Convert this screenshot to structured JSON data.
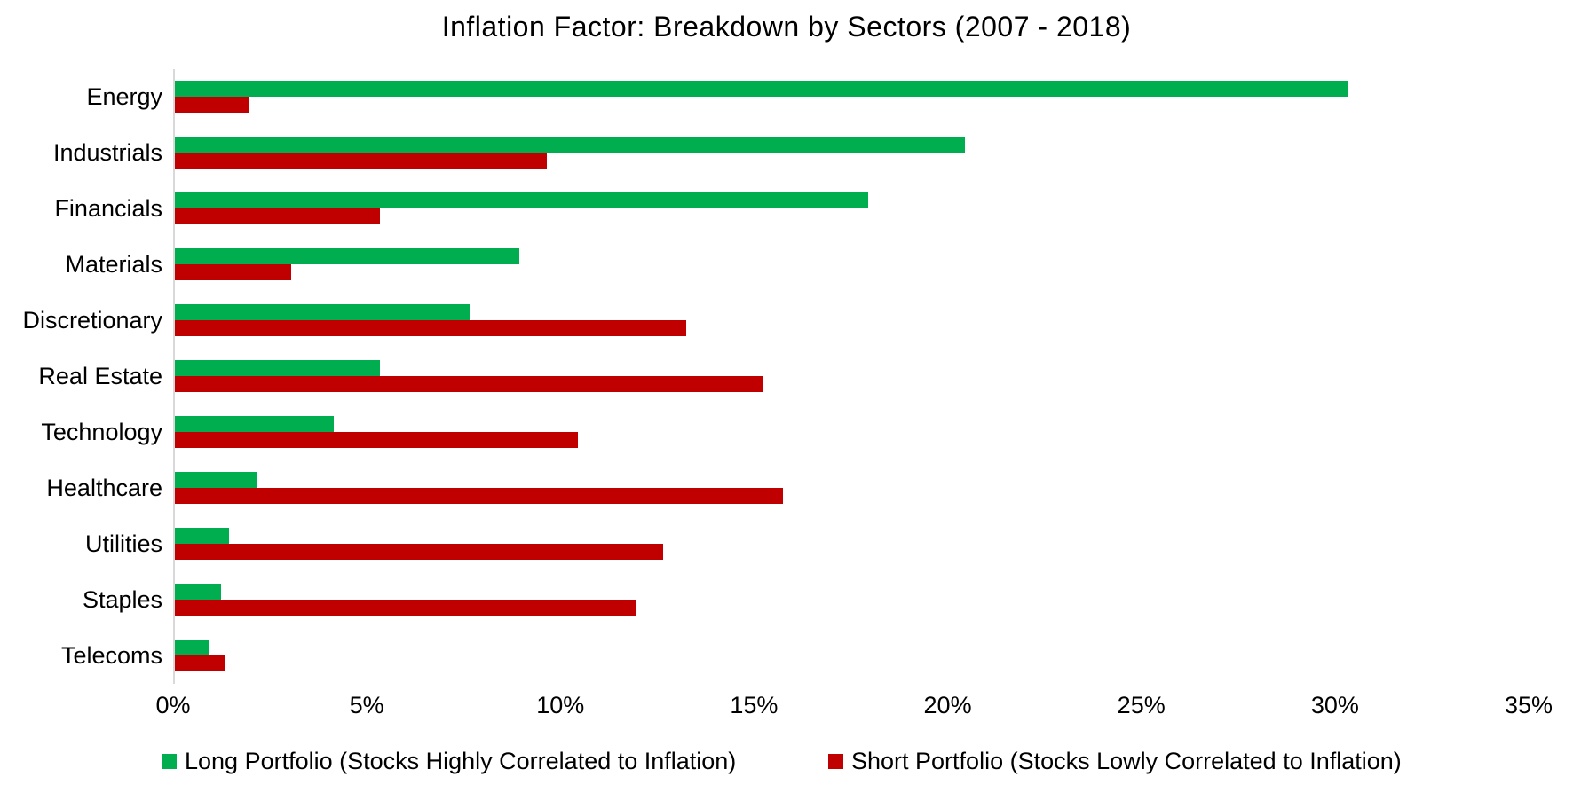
{
  "chart_data": {
    "type": "bar",
    "orientation": "horizontal",
    "title": "Inflation Factor: Breakdown by Sectors (2007 - 2018)",
    "categories": [
      "Energy",
      "Industrials",
      "Financials",
      "Materials",
      "Discretionary",
      "Real Estate",
      "Technology",
      "Healthcare",
      "Utilities",
      "Staples",
      "Telecoms"
    ],
    "series": [
      {
        "name": "Long Portfolio (Stocks Highly Correlated to Inflation)",
        "color": "#00ae50",
        "values": [
          30.3,
          20.4,
          17.9,
          8.9,
          7.6,
          5.3,
          4.1,
          2.1,
          1.4,
          1.2,
          0.9
        ]
      },
      {
        "name": "Short Portfolio (Stocks Lowly Correlated to Inflation)",
        "color": "#c00000",
        "values": [
          1.9,
          9.6,
          5.3,
          3.0,
          13.2,
          15.2,
          10.4,
          15.7,
          12.6,
          11.9,
          1.3
        ]
      }
    ],
    "x_axis": {
      "min": 0,
      "max": 35,
      "tick_step": 5,
      "tick_labels": [
        "0%",
        "5%",
        "10%",
        "15%",
        "20%",
        "25%",
        "30%",
        "35%"
      ],
      "unit": "%"
    },
    "grid": false,
    "legend_position": "bottom",
    "axis_line_color": "#d9d9d9"
  }
}
